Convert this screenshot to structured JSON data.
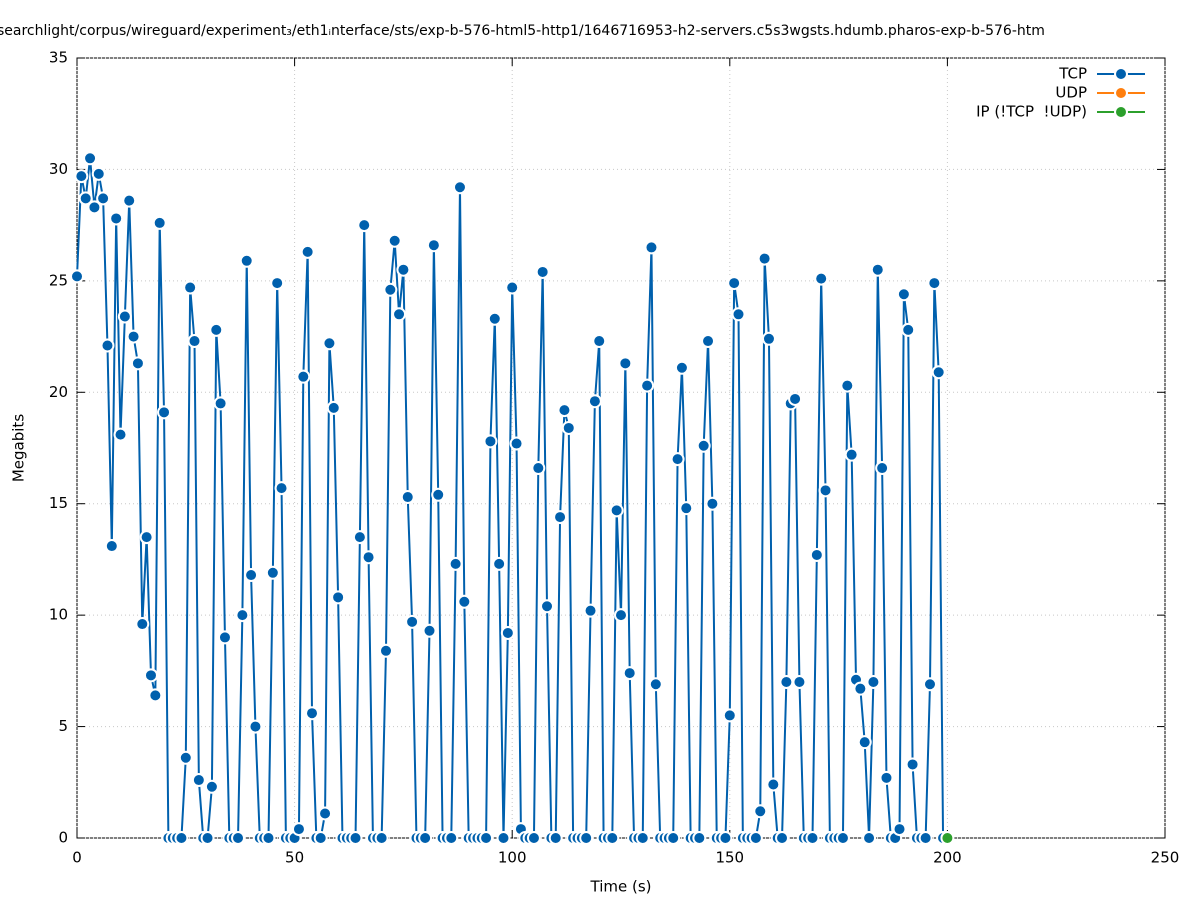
{
  "chart_data": {
    "type": "line",
    "title": "searchlight/corpus/wireguard/experiment₃/eth1ᵢnterface/sts/exp-b-576-html5-http1/1646716953-h2-servers.c5s3wgsts.hdumb.pharos-exp-b-576-htm",
    "x_label": "Time (s)",
    "y_label": "Megabits",
    "xlim": [
      0,
      250
    ],
    "xticks": [
      0,
      50,
      100,
      150,
      200,
      250
    ],
    "ylim": [
      0,
      35
    ],
    "yticks": [
      0,
      5,
      10,
      15,
      20,
      25,
      30,
      35
    ],
    "grid": true,
    "legend": "top-right",
    "series": [
      {
        "name": "TCP",
        "color": "#0060ad",
        "x": [
          0,
          1,
          2,
          3,
          4,
          5,
          6,
          7,
          8,
          9,
          10,
          11,
          12,
          13,
          14,
          15,
          16,
          17,
          18,
          19,
          20,
          21,
          22,
          23,
          24,
          25,
          26,
          27,
          28,
          29,
          30,
          31,
          32,
          33,
          34,
          35,
          36,
          37,
          38,
          39,
          40,
          41,
          42,
          43,
          44,
          45,
          46,
          47,
          48,
          49,
          50,
          51,
          52,
          53,
          54,
          55,
          56,
          57,
          58,
          59,
          60,
          61,
          62,
          63,
          64,
          65,
          66,
          67,
          68,
          69,
          70,
          71,
          72,
          73,
          74,
          75,
          76,
          77,
          78,
          79,
          80,
          81,
          82,
          83,
          84,
          85,
          86,
          87,
          88,
          89,
          90,
          91,
          92,
          93,
          94,
          95,
          96,
          97,
          98,
          99,
          100,
          101,
          102,
          103,
          104,
          105,
          106,
          107,
          108,
          109,
          110,
          111,
          112,
          113,
          114,
          115,
          116,
          117,
          118,
          119,
          120,
          121,
          122,
          123,
          124,
          125,
          126,
          127,
          128,
          129,
          130,
          131,
          132,
          133,
          134,
          135,
          136,
          137,
          138,
          139,
          140,
          141,
          142,
          143,
          144,
          145,
          146,
          147,
          148,
          149,
          150,
          151,
          152,
          153,
          154,
          155,
          156,
          157,
          158,
          159,
          160,
          161,
          162,
          163,
          164,
          165,
          166,
          167,
          168,
          169,
          170,
          171,
          172,
          173,
          174,
          175,
          176,
          177,
          178,
          179,
          180,
          181,
          182,
          183,
          184,
          185,
          186,
          187,
          188,
          189,
          190,
          191,
          192,
          193,
          194,
          195,
          196,
          197,
          198,
          199
        ],
        "values": [
          25.2,
          29.7,
          28.7,
          30.5,
          28.3,
          29.8,
          28.7,
          22.1,
          13.1,
          27.8,
          18.1,
          23.4,
          28.6,
          22.5,
          21.3,
          9.6,
          13.5,
          7.3,
          6.4,
          27.6,
          19.1,
          0,
          0,
          0,
          0,
          3.6,
          24.7,
          22.3,
          2.6,
          0,
          0,
          2.3,
          22.8,
          19.5,
          9.0,
          0,
          0,
          0,
          10.0,
          25.9,
          11.8,
          5.0,
          0,
          0,
          0,
          11.9,
          24.9,
          15.7,
          0,
          0,
          0,
          0.4,
          20.7,
          26.3,
          5.6,
          0,
          0,
          1.1,
          22.2,
          19.3,
          10.8,
          0,
          0,
          0,
          0,
          13.5,
          27.5,
          12.6,
          0,
          0,
          0,
          8.4,
          24.6,
          26.8,
          23.5,
          25.5,
          15.3,
          9.7,
          0,
          0,
          0,
          9.3,
          26.6,
          15.4,
          0,
          0,
          0,
          12.3,
          29.2,
          10.6,
          0,
          0,
          0,
          0,
          0,
          17.8,
          23.3,
          12.3,
          0,
          9.2,
          24.7,
          17.7,
          0.4,
          0,
          0,
          0,
          16.6,
          25.4,
          10.4,
          0,
          0,
          14.4,
          19.2,
          18.4,
          0,
          0,
          0,
          0,
          10.2,
          19.6,
          22.3,
          0,
          0,
          0,
          14.7,
          10.0,
          21.3,
          7.4,
          0,
          0,
          0,
          20.3,
          26.5,
          6.9,
          0,
          0,
          0,
          0,
          17.0,
          21.1,
          14.8,
          0,
          0,
          0,
          17.6,
          22.3,
          15.0,
          0,
          0,
          0,
          5.5,
          24.9,
          23.5,
          0,
          0,
          0,
          0,
          1.2,
          26.0,
          22.4,
          2.4,
          0,
          0,
          7.0,
          19.5,
          19.7,
          7.0,
          0,
          0,
          0,
          12.7,
          25.1,
          15.6,
          0,
          0,
          0,
          0,
          20.3,
          17.2,
          7.1,
          6.7,
          4.3,
          0,
          7.0,
          25.5,
          16.6,
          2.7,
          0,
          0,
          0.4,
          24.4,
          22.8,
          3.3,
          0,
          0,
          0,
          6.9,
          24.9,
          20.9,
          0
        ]
      },
      {
        "name": "UDP",
        "color": "#ff7f0e",
        "x": [],
        "values": []
      },
      {
        "name": "IP (!TCP  !UDP)",
        "color": "#2ca02c",
        "x": [
          200
        ],
        "values": [
          0
        ]
      }
    ]
  }
}
